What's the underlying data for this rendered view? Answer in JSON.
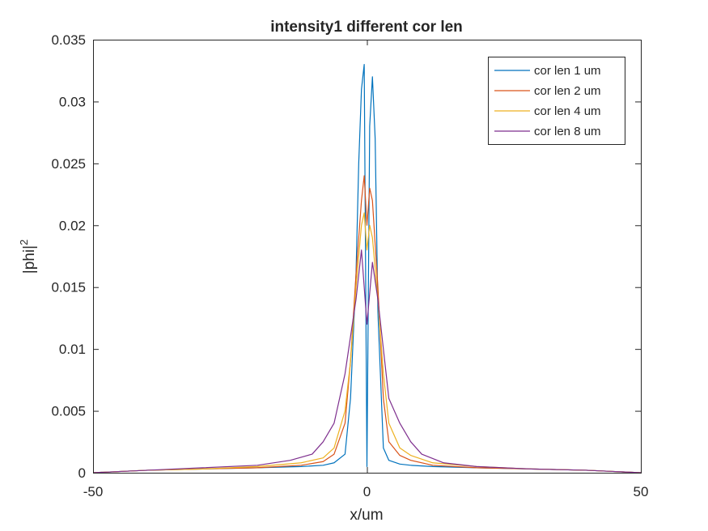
{
  "chart_data": {
    "type": "line",
    "title": "intensity1 different cor len",
    "xlabel": "x/um",
    "ylabel_base": "|phi|",
    "ylabel_sup": "2",
    "xlim": [
      -50,
      50
    ],
    "ylim": [
      0,
      0.035
    ],
    "xticks": [
      -50,
      0,
      50
    ],
    "xtick_labels": [
      "-50",
      "0",
      "50"
    ],
    "yticks": [
      0,
      0.005,
      0.01,
      0.015,
      0.02,
      0.025,
      0.03,
      0.035
    ],
    "ytick_labels": [
      "0",
      "0.005",
      "0.01",
      "0.015",
      "0.02",
      "0.025",
      "0.03",
      "0.035"
    ],
    "grid": false,
    "legend_position": "top-right",
    "series": [
      {
        "name": "cor len 1 um",
        "color": "#0072BD",
        "x": [
          -50,
          -40,
          -30,
          -20,
          -12,
          -8,
          -6,
          -4,
          -3,
          -2,
          -1.5,
          -1,
          -0.5,
          0,
          0.5,
          1,
          1.5,
          2,
          3,
          4,
          6,
          8,
          12,
          20,
          30,
          40,
          50
        ],
        "y": [
          0,
          0.0002,
          0.0003,
          0.0004,
          0.0005,
          0.0006,
          0.0008,
          0.0015,
          0.006,
          0.016,
          0.025,
          0.031,
          0.033,
          0.0005,
          0.028,
          0.032,
          0.027,
          0.013,
          0.002,
          0.001,
          0.0007,
          0.0006,
          0.0005,
          0.0004,
          0.0003,
          0.0002,
          0
        ]
      },
      {
        "name": "cor len 2 um",
        "color": "#D95319",
        "x": [
          -50,
          -40,
          -30,
          -20,
          -12,
          -8,
          -6,
          -4,
          -3,
          -2,
          -1,
          -0.5,
          0,
          0.5,
          1,
          2,
          3,
          4,
          6,
          8,
          12,
          20,
          30,
          40,
          50
        ],
        "y": [
          0,
          0.0002,
          0.0003,
          0.0004,
          0.0006,
          0.0009,
          0.0015,
          0.004,
          0.009,
          0.016,
          0.022,
          0.024,
          0.02,
          0.023,
          0.022,
          0.015,
          0.006,
          0.0025,
          0.0014,
          0.001,
          0.0006,
          0.0004,
          0.0003,
          0.0002,
          0
        ]
      },
      {
        "name": "cor len 4 um",
        "color": "#EDB120",
        "x": [
          -50,
          -40,
          -30,
          -20,
          -12,
          -8,
          -6,
          -4,
          -3,
          -2,
          -1,
          -0.5,
          0,
          0.5,
          1,
          2,
          3,
          4,
          6,
          8,
          12,
          20,
          30,
          40,
          50
        ],
        "y": [
          0,
          0.0002,
          0.0003,
          0.0005,
          0.0008,
          0.0012,
          0.002,
          0.005,
          0.009,
          0.015,
          0.02,
          0.021,
          0.018,
          0.02,
          0.019,
          0.014,
          0.008,
          0.004,
          0.002,
          0.0014,
          0.0008,
          0.0005,
          0.0003,
          0.0002,
          0
        ]
      },
      {
        "name": "cor len 8 um",
        "color": "#7E2F8E",
        "x": [
          -50,
          -40,
          -30,
          -20,
          -14,
          -10,
          -8,
          -6,
          -4,
          -3,
          -2,
          -1,
          0,
          1,
          2,
          3,
          4,
          6,
          8,
          10,
          14,
          20,
          30,
          40,
          50
        ],
        "y": [
          0,
          0.0002,
          0.0004,
          0.0006,
          0.001,
          0.0015,
          0.0025,
          0.004,
          0.008,
          0.011,
          0.014,
          0.018,
          0.012,
          0.017,
          0.014,
          0.01,
          0.006,
          0.004,
          0.0025,
          0.0015,
          0.0008,
          0.0005,
          0.0003,
          0.0002,
          0
        ]
      }
    ]
  }
}
